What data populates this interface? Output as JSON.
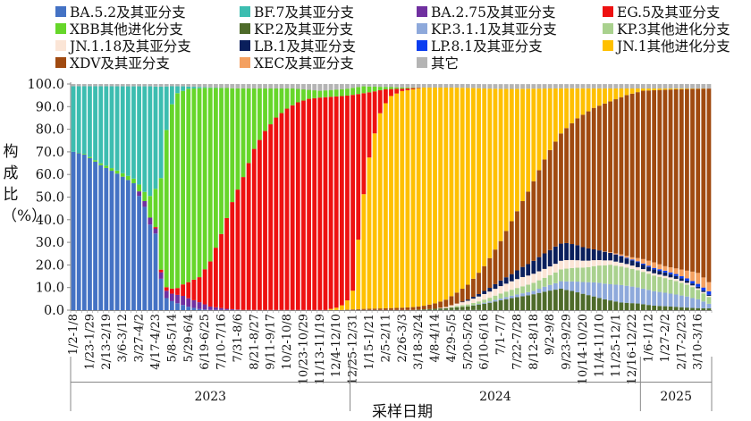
{
  "legend": [
    {
      "label": "BA.5.2及其亚分支",
      "color": "#4472C4"
    },
    {
      "label": "BF.7及其亚分支",
      "color": "#3CBDB0"
    },
    {
      "label": "BA.2.75及其亚分支",
      "color": "#7030A0"
    },
    {
      "label": "EG.5及其亚分支",
      "color": "#EE1111"
    },
    {
      "label": "XBB其他进化分支",
      "color": "#66D62A"
    },
    {
      "label": "KP.2及其亚分支",
      "color": "#4E6B2A"
    },
    {
      "label": "KP.3.1.1及其亚分支",
      "color": "#8EA9DB"
    },
    {
      "label": "KP.3其他进化分支",
      "color": "#A9D18E"
    },
    {
      "label": "JN.1.18及其亚分支",
      "color": "#FBE5D6"
    },
    {
      "label": "LB.1及其亚分支",
      "color": "#0A1F5C"
    },
    {
      "label": "LP.8.1及其亚分支",
      "color": "#0B3DF0"
    },
    {
      "label": "JN.1其他进化分支",
      "color": "#FFC000"
    },
    {
      "label": "XDV及其亚分支",
      "color": "#A04A10"
    },
    {
      "label": "XEC及其亚分支",
      "color": "#F4A060"
    },
    {
      "label": "其它",
      "color": "#B4B4B4"
    }
  ],
  "chart_data": {
    "type": "bar",
    "stacked": true,
    "title": "",
    "xlabel": "采样日期",
    "ylabel": "构成比（%）",
    "ylim": [
      0,
      100
    ],
    "yticks": [
      "0.0",
      "10.0",
      "20.0",
      "30.0",
      "40.0",
      "50.0",
      "60.0",
      "70.0",
      "80.0",
      "90.0",
      "100.0"
    ],
    "years": [
      {
        "label": "2023",
        "first_index": 0,
        "last_index": 50
      },
      {
        "label": "2024",
        "first_index": 51,
        "last_index": 103
      },
      {
        "label": "2025",
        "first_index": 104,
        "last_index": 116
      }
    ],
    "tick_labels": [
      {
        "index": 0,
        "label": "1/2-1/8"
      },
      {
        "index": 3,
        "label": "1/23-1/29"
      },
      {
        "index": 6,
        "label": "2/13-2/19"
      },
      {
        "index": 9,
        "label": "3/6-3/12"
      },
      {
        "index": 12,
        "label": "3/27-4/2"
      },
      {
        "index": 15,
        "label": "4/17-4/23"
      },
      {
        "index": 18,
        "label": "5/8-5/14"
      },
      {
        "index": 21,
        "label": "5/29-6/4"
      },
      {
        "index": 24,
        "label": "6/19-6/25"
      },
      {
        "index": 27,
        "label": "7/10-7/16"
      },
      {
        "index": 30,
        "label": "7/31-8/6"
      },
      {
        "index": 33,
        "label": "8/21-8/27"
      },
      {
        "index": 36,
        "label": "9/11-9/17"
      },
      {
        "index": 39,
        "label": "10/2-10/8"
      },
      {
        "index": 42,
        "label": "10/23-10/29"
      },
      {
        "index": 45,
        "label": "11/13-11/19"
      },
      {
        "index": 48,
        "label": "12/4-12/10"
      },
      {
        "index": 51,
        "label": "12/25-12/31"
      },
      {
        "index": 54,
        "label": "1/15-1/21"
      },
      {
        "index": 57,
        "label": "2/5-2/11"
      },
      {
        "index": 60,
        "label": "2/26-3/3"
      },
      {
        "index": 63,
        "label": "3/18-3/24"
      },
      {
        "index": 66,
        "label": "4/8-4/14"
      },
      {
        "index": 69,
        "label": "4/29-5/5"
      },
      {
        "index": 72,
        "label": "5/20-5/26"
      },
      {
        "index": 75,
        "label": "6/10-6/16"
      },
      {
        "index": 78,
        "label": "7/1-7/7"
      },
      {
        "index": 81,
        "label": "7/22-7/28"
      },
      {
        "index": 84,
        "label": "8/12-8/18"
      },
      {
        "index": 87,
        "label": "9/2-9/8"
      },
      {
        "index": 90,
        "label": "9/23-9/29"
      },
      {
        "index": 93,
        "label": "10/14-10/20"
      },
      {
        "index": 96,
        "label": "11/4-11/10"
      },
      {
        "index": 99,
        "label": "11/25-12/1"
      },
      {
        "index": 102,
        "label": "12/16-12/22"
      },
      {
        "index": 105,
        "label": "1/6-1/12"
      },
      {
        "index": 108,
        "label": "1/27-2/2"
      },
      {
        "index": 111,
        "label": "2/17-2/23"
      },
      {
        "index": 114,
        "label": "3/10-3/16"
      }
    ],
    "n_weeks": 117,
    "series_order": [
      "BA.5.2及其亚分支",
      "BA.2.75及其亚分支",
      "KP.2及其亚分支",
      "KP.3.1.1及其亚分支",
      "KP.3其他进化分支",
      "JN.1.18及其亚分支",
      "LB.1及其亚分支",
      "LP.8.1及其亚分支",
      "XEC及其亚分支",
      "XDV及其亚分支",
      "JN.1其他进化分支",
      "EG.5及其亚分支",
      "XBB其他进化分支",
      "BF.7及其亚分支",
      "其它"
    ],
    "series_keypoints": {
      "BA.5.2及其亚分支": [
        [
          0,
          70
        ],
        [
          2,
          69
        ],
        [
          5,
          64
        ],
        [
          8,
          60
        ],
        [
          11,
          55
        ],
        [
          13,
          45
        ],
        [
          15,
          30
        ],
        [
          16,
          12
        ],
        [
          17,
          5
        ],
        [
          19,
          3
        ],
        [
          21,
          1.5
        ],
        [
          23,
          0.5
        ],
        [
          25,
          0.1
        ],
        [
          116,
          0
        ]
      ],
      "BA.2.75及其亚分支": [
        [
          0,
          0
        ],
        [
          11,
          0
        ],
        [
          12,
          2
        ],
        [
          14,
          3
        ],
        [
          15,
          2
        ],
        [
          17,
          3
        ],
        [
          20,
          4
        ],
        [
          23,
          3
        ],
        [
          25,
          1.5
        ],
        [
          28,
          0.5
        ],
        [
          31,
          0
        ],
        [
          116,
          0
        ]
      ],
      "KP.2及其亚分支": [
        [
          0,
          0
        ],
        [
          62,
          0
        ],
        [
          64,
          0.3
        ],
        [
          68,
          0.8
        ],
        [
          72,
          1.5
        ],
        [
          76,
          3
        ],
        [
          80,
          5
        ],
        [
          84,
          7
        ],
        [
          87,
          9
        ],
        [
          89,
          10
        ],
        [
          91,
          9
        ],
        [
          94,
          7
        ],
        [
          97,
          5
        ],
        [
          100,
          3.5
        ],
        [
          103,
          3
        ],
        [
          106,
          2
        ],
        [
          110,
          1.5
        ],
        [
          113,
          1
        ],
        [
          116,
          0.8
        ]
      ],
      "KP.3.1.1及其亚分支": [
        [
          0,
          0
        ],
        [
          72,
          0
        ],
        [
          76,
          0.5
        ],
        [
          80,
          1
        ],
        [
          84,
          1.5
        ],
        [
          88,
          3
        ],
        [
          92,
          5
        ],
        [
          96,
          7
        ],
        [
          100,
          8
        ],
        [
          104,
          7
        ],
        [
          108,
          6
        ],
        [
          112,
          5
        ],
        [
          114,
          4
        ],
        [
          116,
          2
        ]
      ],
      "KP.3其他进化分支": [
        [
          0,
          0
        ],
        [
          68,
          0
        ],
        [
          70,
          0.5
        ],
        [
          74,
          1
        ],
        [
          78,
          2
        ],
        [
          82,
          3
        ],
        [
          86,
          4
        ],
        [
          90,
          6
        ],
        [
          94,
          7
        ],
        [
          98,
          9
        ],
        [
          102,
          8
        ],
        [
          106,
          7
        ],
        [
          110,
          6
        ],
        [
          113,
          5
        ],
        [
          116,
          3
        ]
      ],
      "JN.1.18及其亚分支": [
        [
          0,
          0
        ],
        [
          66,
          0
        ],
        [
          70,
          1
        ],
        [
          74,
          2
        ],
        [
          78,
          3
        ],
        [
          82,
          4
        ],
        [
          86,
          4
        ],
        [
          90,
          4
        ],
        [
          94,
          3
        ],
        [
          98,
          2
        ],
        [
          102,
          1.5
        ],
        [
          106,
          1
        ],
        [
          110,
          1
        ],
        [
          116,
          0.5
        ]
      ],
      "LB.1及其亚分支": [
        [
          0,
          0
        ],
        [
          70,
          0
        ],
        [
          72,
          0.5
        ],
        [
          76,
          1.5
        ],
        [
          80,
          3
        ],
        [
          83,
          5
        ],
        [
          86,
          7
        ],
        [
          88,
          8
        ],
        [
          90,
          8
        ],
        [
          92,
          7
        ],
        [
          95,
          5
        ],
        [
          98,
          3.5
        ],
        [
          101,
          2.5
        ],
        [
          104,
          2
        ],
        [
          108,
          1.5
        ],
        [
          112,
          1
        ],
        [
          116,
          0.5
        ]
      ],
      "LP.8.1及其亚分支": [
        [
          0,
          0
        ],
        [
          98,
          0
        ],
        [
          100,
          0.3
        ],
        [
          104,
          0.5
        ],
        [
          108,
          0.8
        ],
        [
          112,
          1
        ],
        [
          116,
          1.5
        ]
      ],
      "XEC及其亚分支": [
        [
          0,
          0
        ],
        [
          96,
          0
        ],
        [
          99,
          0.5
        ],
        [
          102,
          1
        ],
        [
          104,
          2
        ],
        [
          106,
          2.5
        ],
        [
          108,
          2
        ],
        [
          110,
          2.5
        ],
        [
          112,
          3.5
        ],
        [
          114,
          5
        ],
        [
          116,
          4
        ]
      ],
      "XDV及其亚分支": [
        [
          0,
          0
        ],
        [
          49,
          0
        ],
        [
          52,
          0.4
        ],
        [
          55,
          0.6
        ],
        [
          60,
          1
        ],
        [
          64,
          1.5
        ],
        [
          68,
          3
        ],
        [
          72,
          6
        ],
        [
          75,
          10
        ],
        [
          78,
          16
        ],
        [
          81,
          25
        ],
        [
          84,
          35
        ],
        [
          87,
          46
        ],
        [
          90,
          54
        ],
        [
          93,
          62
        ],
        [
          96,
          67
        ],
        [
          99,
          71
        ],
        [
          102,
          74
        ],
        [
          106,
          77
        ],
        [
          110,
          80
        ],
        [
          113,
          83
        ],
        [
          116,
          85
        ]
      ],
      "JN.1其他进化分支": [
        [
          0,
          0
        ],
        [
          46,
          0
        ],
        [
          47,
          0.5
        ],
        [
          48,
          1
        ],
        [
          49,
          2
        ],
        [
          50,
          4
        ],
        [
          51,
          8
        ],
        [
          52,
          30
        ],
        [
          53,
          50
        ],
        [
          54,
          65
        ],
        [
          55,
          75
        ],
        [
          56,
          85
        ],
        [
          58,
          92
        ],
        [
          60,
          93
        ],
        [
          63,
          93
        ],
        [
          66,
          91
        ],
        [
          68,
          88
        ],
        [
          71,
          82
        ],
        [
          74,
          75
        ],
        [
          77,
          65
        ],
        [
          80,
          55
        ],
        [
          83,
          45
        ],
        [
          86,
          32
        ],
        [
          89,
          21
        ],
        [
          92,
          14
        ],
        [
          95,
          9
        ],
        [
          98,
          6
        ],
        [
          101,
          3
        ],
        [
          104,
          1
        ],
        [
          108,
          0.5
        ],
        [
          116,
          0
        ]
      ],
      "EG.5及其亚分支": [
        [
          0,
          0
        ],
        [
          14,
          0
        ],
        [
          15,
          0.5
        ],
        [
          17,
          1.5
        ],
        [
          19,
          3
        ],
        [
          21,
          7
        ],
        [
          23,
          11
        ],
        [
          25,
          20
        ],
        [
          27,
          33
        ],
        [
          29,
          48
        ],
        [
          31,
          60
        ],
        [
          33,
          72
        ],
        [
          35,
          80
        ],
        [
          37,
          86
        ],
        [
          39,
          90
        ],
        [
          41,
          93
        ],
        [
          43,
          94
        ],
        [
          45,
          94
        ],
        [
          47,
          93
        ],
        [
          48,
          92
        ],
        [
          49,
          90
        ],
        [
          50,
          88
        ],
        [
          51,
          84
        ],
        [
          52,
          63
        ],
        [
          53,
          44
        ],
        [
          54,
          28
        ],
        [
          55,
          18
        ],
        [
          56,
          10
        ],
        [
          57,
          6
        ],
        [
          58,
          3
        ],
        [
          60,
          1
        ],
        [
          62,
          0.5
        ],
        [
          64,
          0
        ],
        [
          116,
          0
        ]
      ],
      "XBB其他进化分支": [
        [
          0,
          0
        ],
        [
          3,
          0.5
        ],
        [
          6,
          1
        ],
        [
          9,
          1.5
        ],
        [
          11,
          2
        ],
        [
          13,
          4
        ],
        [
          15,
          15
        ],
        [
          16,
          35
        ],
        [
          17,
          65
        ],
        [
          18,
          82
        ],
        [
          19,
          85
        ],
        [
          21,
          84
        ],
        [
          23,
          83
        ],
        [
          25,
          77
        ],
        [
          27,
          65
        ],
        [
          29,
          51
        ],
        [
          31,
          40
        ],
        [
          33,
          27
        ],
        [
          35,
          19
        ],
        [
          37,
          13
        ],
        [
          39,
          9
        ],
        [
          41,
          6
        ],
        [
          43,
          4
        ],
        [
          45,
          3
        ],
        [
          47,
          3
        ],
        [
          49,
          3
        ],
        [
          51,
          3
        ],
        [
          53,
          3
        ],
        [
          55,
          2
        ],
        [
          57,
          1
        ],
        [
          60,
          0.5
        ],
        [
          64,
          0
        ],
        [
          116,
          0
        ]
      ],
      "BF.7及其亚分支": [
        [
          0,
          29
        ],
        [
          2,
          30
        ],
        [
          5,
          34
        ],
        [
          8,
          37
        ],
        [
          11,
          40
        ],
        [
          13,
          46
        ],
        [
          14,
          48
        ],
        [
          15,
          40
        ],
        [
          16,
          35
        ],
        [
          17,
          18
        ],
        [
          18,
          8
        ],
        [
          19,
          3
        ],
        [
          21,
          1
        ],
        [
          24,
          0.3
        ],
        [
          28,
          0
        ],
        [
          116,
          0
        ]
      ],
      "其它": [
        [
          0,
          1
        ],
        [
          10,
          1
        ],
        [
          20,
          1
        ],
        [
          30,
          2
        ],
        [
          40,
          2
        ],
        [
          45,
          3
        ],
        [
          50,
          2
        ],
        [
          53,
          1
        ],
        [
          60,
          1.5
        ],
        [
          70,
          1.5
        ],
        [
          80,
          2
        ],
        [
          90,
          2
        ],
        [
          100,
          2
        ],
        [
          110,
          2
        ],
        [
          116,
          2
        ]
      ]
    }
  }
}
